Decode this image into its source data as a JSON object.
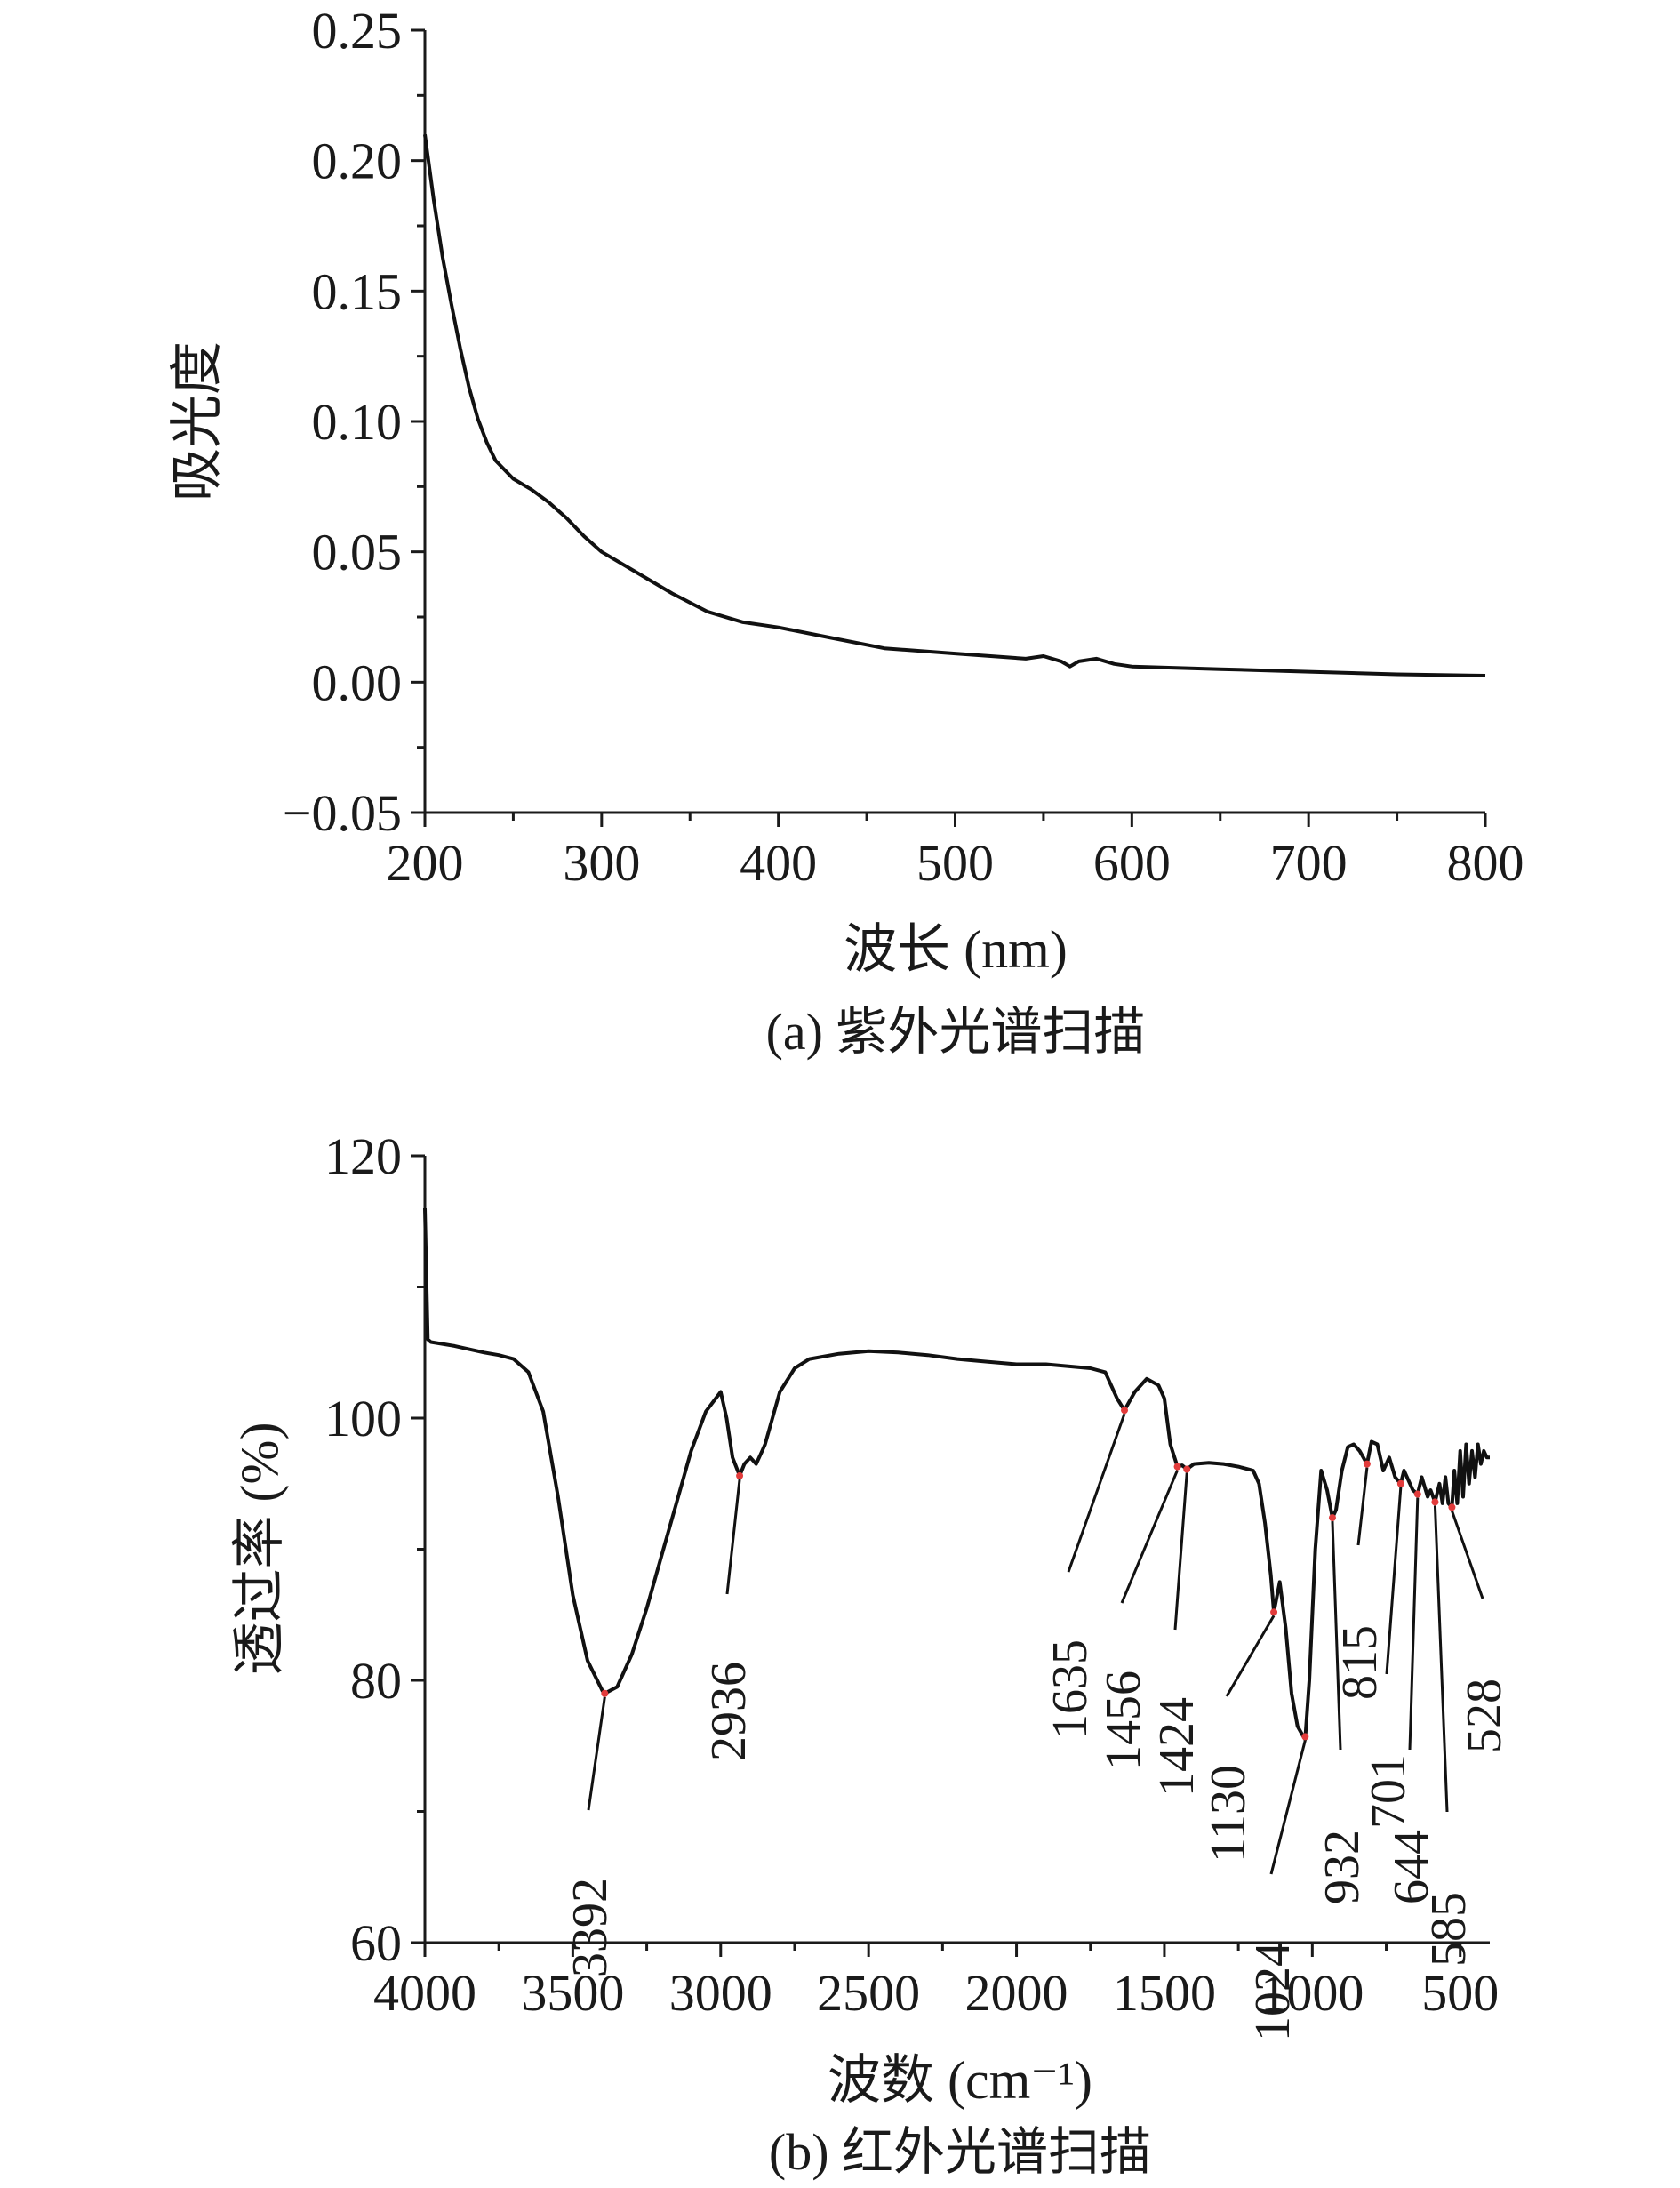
{
  "chart_data": [
    {
      "type": "line",
      "caption": "(a) 紫外光谱扫描",
      "xlabel": "波长 (nm)",
      "ylabel": "吸光度",
      "xlim": [
        200,
        800
      ],
      "ylim": [
        -0.05,
        0.25
      ],
      "xticks": [
        "200",
        "300",
        "400",
        "500",
        "600",
        "700",
        "800"
      ],
      "yticks": [
        "−0.05",
        "0.00",
        "0.05",
        "0.10",
        "0.15",
        "0.20",
        "0.25"
      ],
      "grid": false,
      "series": [
        {
          "x": [
            200,
            205,
            210,
            215,
            220,
            225,
            230,
            235,
            240,
            250,
            260,
            270,
            280,
            290,
            300,
            320,
            340,
            360,
            380,
            400,
            430,
            460,
            500,
            540,
            550,
            560,
            565,
            570,
            580,
            590,
            600,
            650,
            700,
            750,
            800
          ],
          "y": [
            0.21,
            0.185,
            0.163,
            0.145,
            0.128,
            0.113,
            0.101,
            0.092,
            0.085,
            0.078,
            0.074,
            0.069,
            0.063,
            0.056,
            0.05,
            0.042,
            0.034,
            0.027,
            0.023,
            0.021,
            0.017,
            0.013,
            0.011,
            0.009,
            0.01,
            0.008,
            0.006,
            0.008,
            0.009,
            0.007,
            0.006,
            0.005,
            0.004,
            0.003,
            0.0025
          ]
        }
      ]
    },
    {
      "type": "line",
      "caption": "(b) 红外光谱扫描",
      "xlabel": "波数 (cm⁻¹)",
      "ylabel": "透过率 (%)",
      "xlim": [
        4000,
        400
      ],
      "ylim": [
        60,
        120
      ],
      "xticks": [
        "4000",
        "3500",
        "3000",
        "2500",
        "2000",
        "1500",
        "1000",
        "500"
      ],
      "yticks": [
        "60",
        "80",
        "100",
        "120"
      ],
      "grid": false,
      "series": [
        {
          "x": [
            4000,
            3990,
            3980,
            3900,
            3800,
            3750,
            3700,
            3650,
            3600,
            3550,
            3500,
            3450,
            3400,
            3392,
            3350,
            3300,
            3250,
            3200,
            3150,
            3100,
            3050,
            3000,
            2980,
            2960,
            2936,
            2920,
            2900,
            2880,
            2860,
            2850,
            2800,
            2750,
            2700,
            2600,
            2500,
            2400,
            2300,
            2200,
            2100,
            2000,
            1900,
            1800,
            1750,
            1700,
            1660,
            1635,
            1600,
            1560,
            1520,
            1500,
            1480,
            1456,
            1440,
            1424,
            1400,
            1350,
            1300,
            1250,
            1200,
            1180,
            1160,
            1140,
            1130,
            1110,
            1090,
            1070,
            1050,
            1030,
            1024,
            1010,
            990,
            970,
            950,
            932,
            920,
            900,
            880,
            860,
            840,
            815,
            800,
            780,
            760,
            740,
            720,
            701,
            690,
            670,
            660,
            644,
            630,
            610,
            600,
            585,
            570,
            560,
            550,
            540,
            528,
            520,
            510,
            500,
            490,
            480,
            470,
            460,
            450,
            440,
            430,
            420,
            410,
            400
          ],
          "y": [
            116,
            106,
            105.8,
            105.5,
            105,
            104.8,
            104.5,
            103.5,
            100.5,
            94,
            86.5,
            81.5,
            79.2,
            79,
            79.5,
            82,
            85.5,
            89.5,
            93.5,
            97.5,
            100.5,
            102,
            100,
            97,
            95.6,
            96.5,
            97,
            96.5,
            97.5,
            98,
            102,
            103.8,
            104.5,
            104.9,
            105.1,
            105,
            104.8,
            104.5,
            104.3,
            104.1,
            104.1,
            103.9,
            103.8,
            103.5,
            101.5,
            100.6,
            102,
            103,
            102.5,
            101.5,
            98,
            96.3,
            96.4,
            96.1,
            96.5,
            96.6,
            96.5,
            96.3,
            96,
            95,
            92,
            88,
            85.2,
            87.5,
            84,
            79,
            76.5,
            75.7,
            75.5,
            80,
            90,
            96,
            94.5,
            92.4,
            93,
            96,
            97.8,
            98,
            97.5,
            96.5,
            98.2,
            98,
            96,
            97,
            95.5,
            95,
            96,
            95,
            94.5,
            94.2,
            95.5,
            94,
            94.5,
            93.6,
            95,
            93.5,
            95.5,
            93.5,
            93.2,
            96,
            93.5,
            97.5,
            94,
            98,
            95,
            97.5,
            95.5,
            98,
            96.5,
            97.5,
            97,
            97
          ]
        }
      ],
      "annotations": [
        {
          "label": "3392",
          "x": 3392,
          "y": 79
        },
        {
          "label": "2936",
          "x": 2936,
          "y": 95.6
        },
        {
          "label": "1635",
          "x": 1635,
          "y": 100.6
        },
        {
          "label": "1456",
          "x": 1456,
          "y": 96.3
        },
        {
          "label": "1424",
          "x": 1424,
          "y": 96.1
        },
        {
          "label": "1130",
          "x": 1130,
          "y": 85.2
        },
        {
          "label": "1024",
          "x": 1024,
          "y": 75.7
        },
        {
          "label": "932",
          "x": 932,
          "y": 92.4
        },
        {
          "label": "815",
          "x": 815,
          "y": 96.5
        },
        {
          "label": "701",
          "x": 701,
          "y": 95
        },
        {
          "label": "644",
          "x": 644,
          "y": 94.2
        },
        {
          "label": "585",
          "x": 585,
          "y": 93.6
        },
        {
          "label": "528",
          "x": 528,
          "y": 93.2
        }
      ]
    }
  ]
}
